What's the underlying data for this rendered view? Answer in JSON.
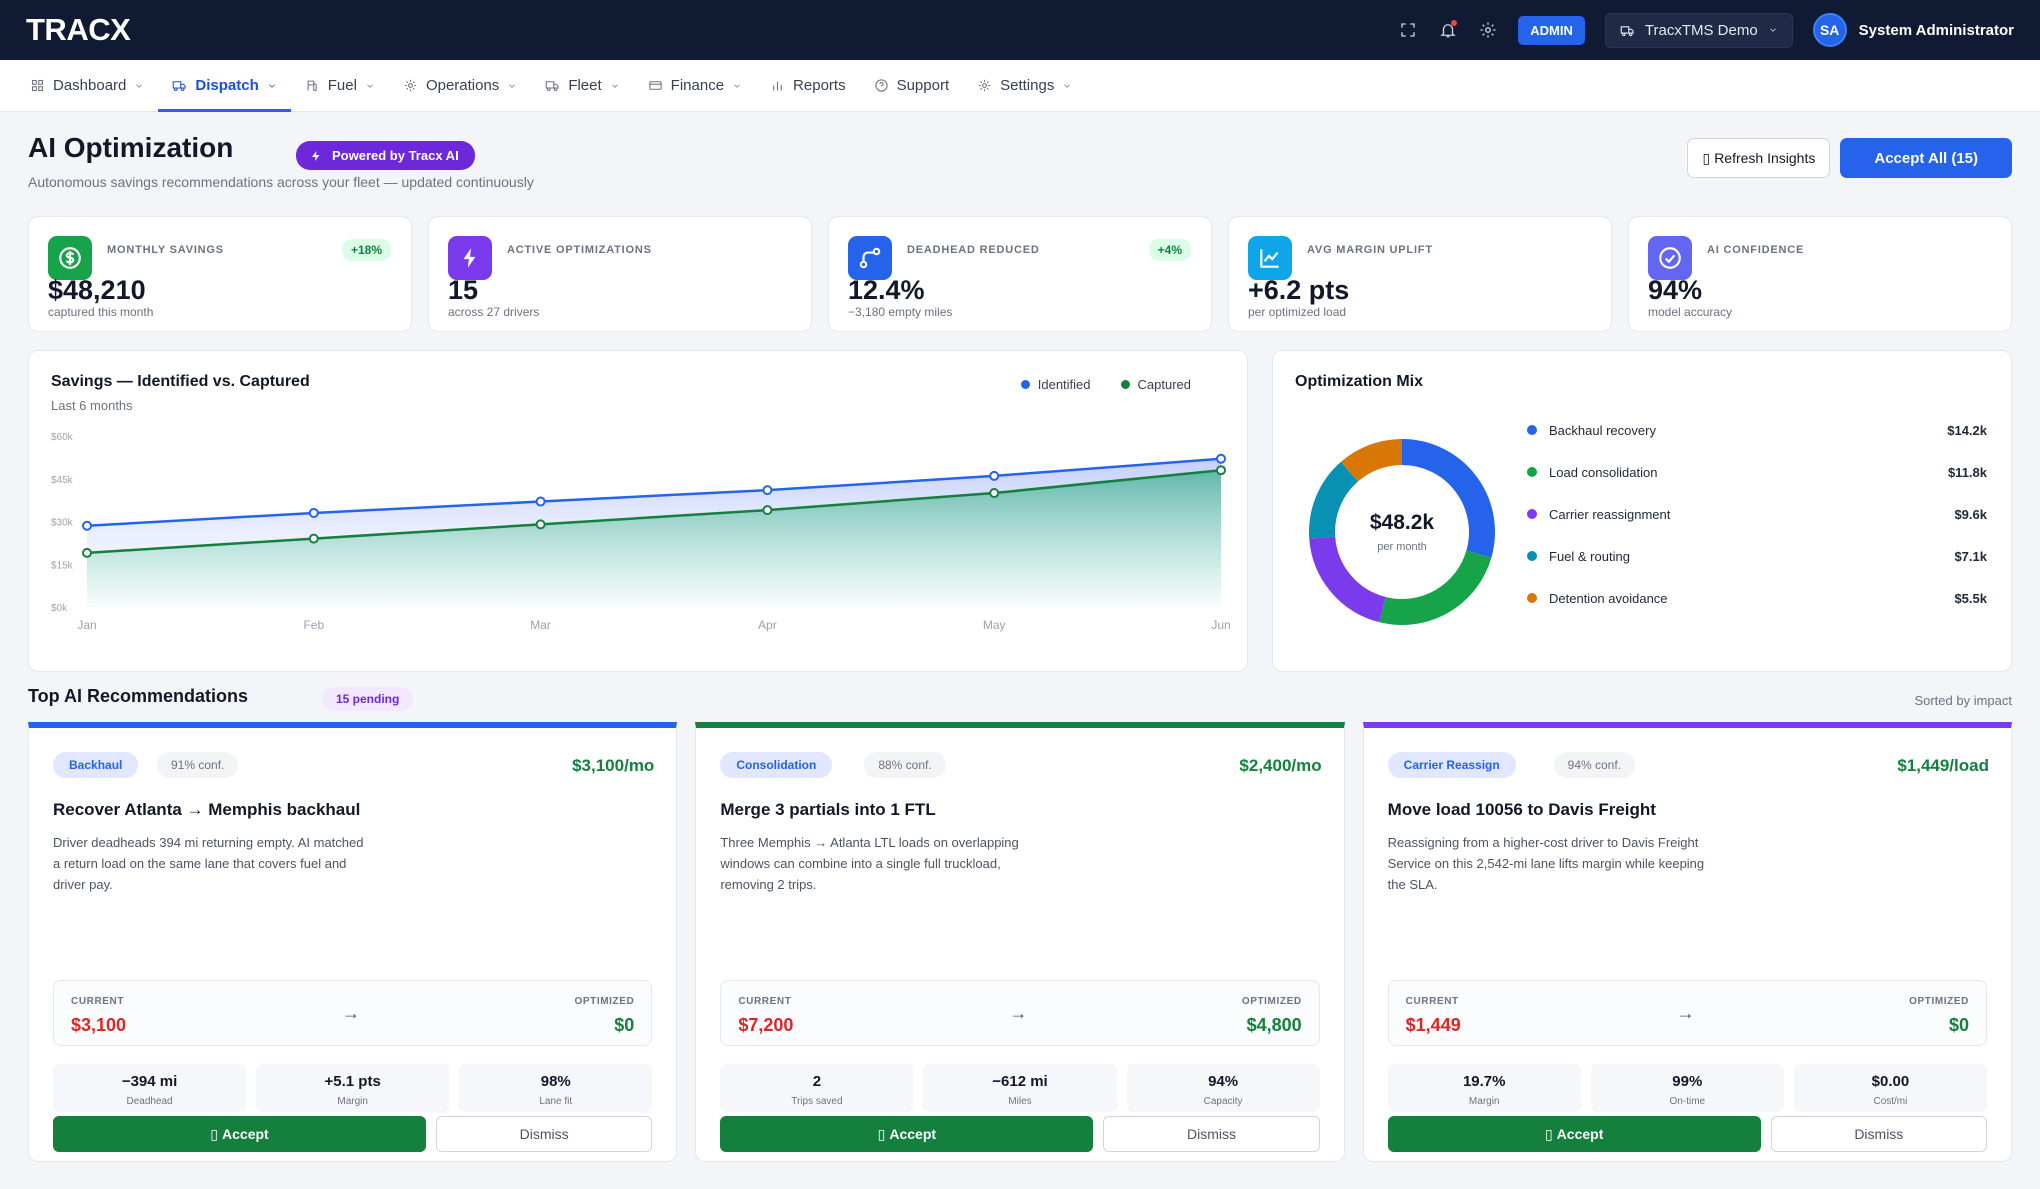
{
  "app": {
    "logo": "TRACX",
    "admin_badge": "ADMIN",
    "tenant": "TracxTMS Demo",
    "user_initials": "SA",
    "user_name": "System Administrator"
  },
  "nav": [
    {
      "label": "Dashboard",
      "icon": "grid-icon",
      "dropdown": true
    },
    {
      "label": "Dispatch",
      "icon": "truck-icon",
      "dropdown": true,
      "active": true
    },
    {
      "label": "Fuel",
      "icon": "fuel-icon",
      "dropdown": true
    },
    {
      "label": "Operations",
      "icon": "cog-icon",
      "dropdown": true
    },
    {
      "label": "Fleet",
      "icon": "truck-icon",
      "dropdown": true
    },
    {
      "label": "Finance",
      "icon": "card-icon",
      "dropdown": true
    },
    {
      "label": "Reports",
      "icon": "bar-chart-icon",
      "dropdown": false
    },
    {
      "label": "Support",
      "icon": "help-icon",
      "dropdown": false
    },
    {
      "label": "Settings",
      "icon": "gear-icon",
      "dropdown": true
    }
  ],
  "header": {
    "title": "AI Optimization",
    "pill": "Powered by Tracx AI",
    "subtitle": "Autonomous savings recommendations across your fleet — updated continuously",
    "refresh_label": "Refresh Insights",
    "accept_all_label": "Accept All (15)"
  },
  "kpis": [
    {
      "label": "MONTHLY SAVINGS",
      "value": "$48,210",
      "sub": "captured this month",
      "delta": "+18%",
      "icon": "dollar-icon",
      "color": "#16a34a"
    },
    {
      "label": "ACTIVE OPTIMIZATIONS",
      "value": "15",
      "sub": "across 27 drivers",
      "delta": "",
      "icon": "bolt-icon",
      "color": "#7c3aed"
    },
    {
      "label": "DEADHEAD REDUCED",
      "value": "12.4%",
      "sub": "−3,180 empty miles",
      "delta": "+4%",
      "icon": "route-icon",
      "color": "#2563eb"
    },
    {
      "label": "AVG MARGIN UPLIFT",
      "value": "+6.2 pts",
      "sub": "per optimized load",
      "delta": "",
      "icon": "trend-icon",
      "color": "#0ea5e9"
    },
    {
      "label": "AI CONFIDENCE",
      "value": "94%",
      "sub": "model accuracy",
      "delta": "",
      "icon": "check-circle-icon",
      "color": "#6366f1"
    }
  ],
  "savings_panel": {
    "title": "Savings — Identified vs. Captured",
    "subtitle": "Last 6 months",
    "legend_identified": "Identified",
    "legend_captured": "Captured",
    "colors": {
      "identified": "#2563eb",
      "captured": "#15803d"
    }
  },
  "chart_data": [
    {
      "type": "area",
      "title": "Savings — Identified vs. Captured",
      "subtitle": "Last 6 months",
      "x": [
        "Jan",
        "Feb",
        "Mar",
        "Apr",
        "May",
        "Jun"
      ],
      "y_ticks": [
        "$0k",
        "$15k",
        "$30k",
        "$45k",
        "$60k"
      ],
      "ylim": [
        0,
        60
      ],
      "series": [
        {
          "name": "Identified",
          "values": [
            28.5,
            33,
            37,
            41,
            46,
            52
          ]
        },
        {
          "name": "Captured",
          "values": [
            19,
            24,
            29,
            34,
            40,
            48
          ]
        }
      ],
      "legend": "top-right",
      "grid": false
    },
    {
      "type": "pie",
      "title": "Optimization Mix",
      "center_value": "$48.2k",
      "center_label": "per month",
      "slices": [
        {
          "name": "Backhaul recovery",
          "value": 14.2,
          "label": "$14.2k",
          "color": "#2563eb"
        },
        {
          "name": "Load consolidation",
          "value": 11.8,
          "label": "$11.8k",
          "color": "#16a34a"
        },
        {
          "name": "Carrier reassignment",
          "value": 9.6,
          "label": "$9.6k",
          "color": "#7c3aed"
        },
        {
          "name": "Fuel & routing",
          "value": 7.1,
          "label": "$7.1k",
          "color": "#0891b2"
        },
        {
          "name": "Detention avoidance",
          "value": 5.5,
          "label": "$5.5k",
          "color": "#d97706"
        }
      ]
    }
  ],
  "recs_header": {
    "title": "Top AI Recommendations",
    "count": "15 pending",
    "sort": "Sorted by impact"
  },
  "recs": [
    {
      "tag": "Backhaul",
      "tag_color": "#2563eb",
      "tag_bg": "#e0e7ff",
      "conf": "91% conf.",
      "amount": "$3,100/mo",
      "accent": "#2563eb",
      "title": "Recover Atlanta → Memphis backhaul",
      "desc": "Driver deadheads 394 mi returning empty. AI matched a return load on the same lane that covers fuel and driver pay.",
      "current_label": "CURRENT",
      "current": "$3,100",
      "optimized_label": "OPTIMIZED",
      "optimized": "$0",
      "stats": [
        {
          "v": "−394 mi",
          "l": "Deadhead"
        },
        {
          "v": "+5.1 pts",
          "l": "Margin"
        },
        {
          "v": "98%",
          "l": "Lane fit"
        }
      ],
      "accept": "Accept",
      "dismiss": "Dismiss"
    },
    {
      "tag": "Consolidation",
      "tag_color": "#2563eb",
      "tag_bg": "#e0e7ff",
      "conf": "88% conf.",
      "amount": "$2,400/mo",
      "accent": "#15803d",
      "title": "Merge 3 partials into 1 FTL",
      "desc": "Three Memphis → Atlanta LTL loads on overlapping windows can combine into a single full truckload, removing 2 trips.",
      "current_label": "CURRENT",
      "current": "$7,200",
      "optimized_label": "OPTIMIZED",
      "optimized": "$4,800",
      "stats": [
        {
          "v": "2",
          "l": "Trips saved"
        },
        {
          "v": "−612 mi",
          "l": "Miles"
        },
        {
          "v": "94%",
          "l": "Capacity"
        }
      ],
      "accept": "Accept",
      "dismiss": "Dismiss"
    },
    {
      "tag": "Carrier Reassign",
      "tag_color": "#2563eb",
      "tag_bg": "#e0e7ff",
      "conf": "94% conf.",
      "amount": "$1,449/load",
      "accent": "#7c3aed",
      "title": "Move load 10056 to Davis Freight",
      "desc": "Reassigning from a higher-cost driver to Davis Freight Service on this 2,542-mi lane lifts margin while keeping the SLA.",
      "current_label": "CURRENT",
      "current": "$1,449",
      "optimized_label": "OPTIMIZED",
      "optimized": "$0",
      "stats": [
        {
          "v": "19.7%",
          "l": "Margin"
        },
        {
          "v": "99%",
          "l": "On-time"
        },
        {
          "v": "$0.00",
          "l": "Cost/mi"
        }
      ],
      "accept": "Accept",
      "dismiss": "Dismiss"
    }
  ]
}
